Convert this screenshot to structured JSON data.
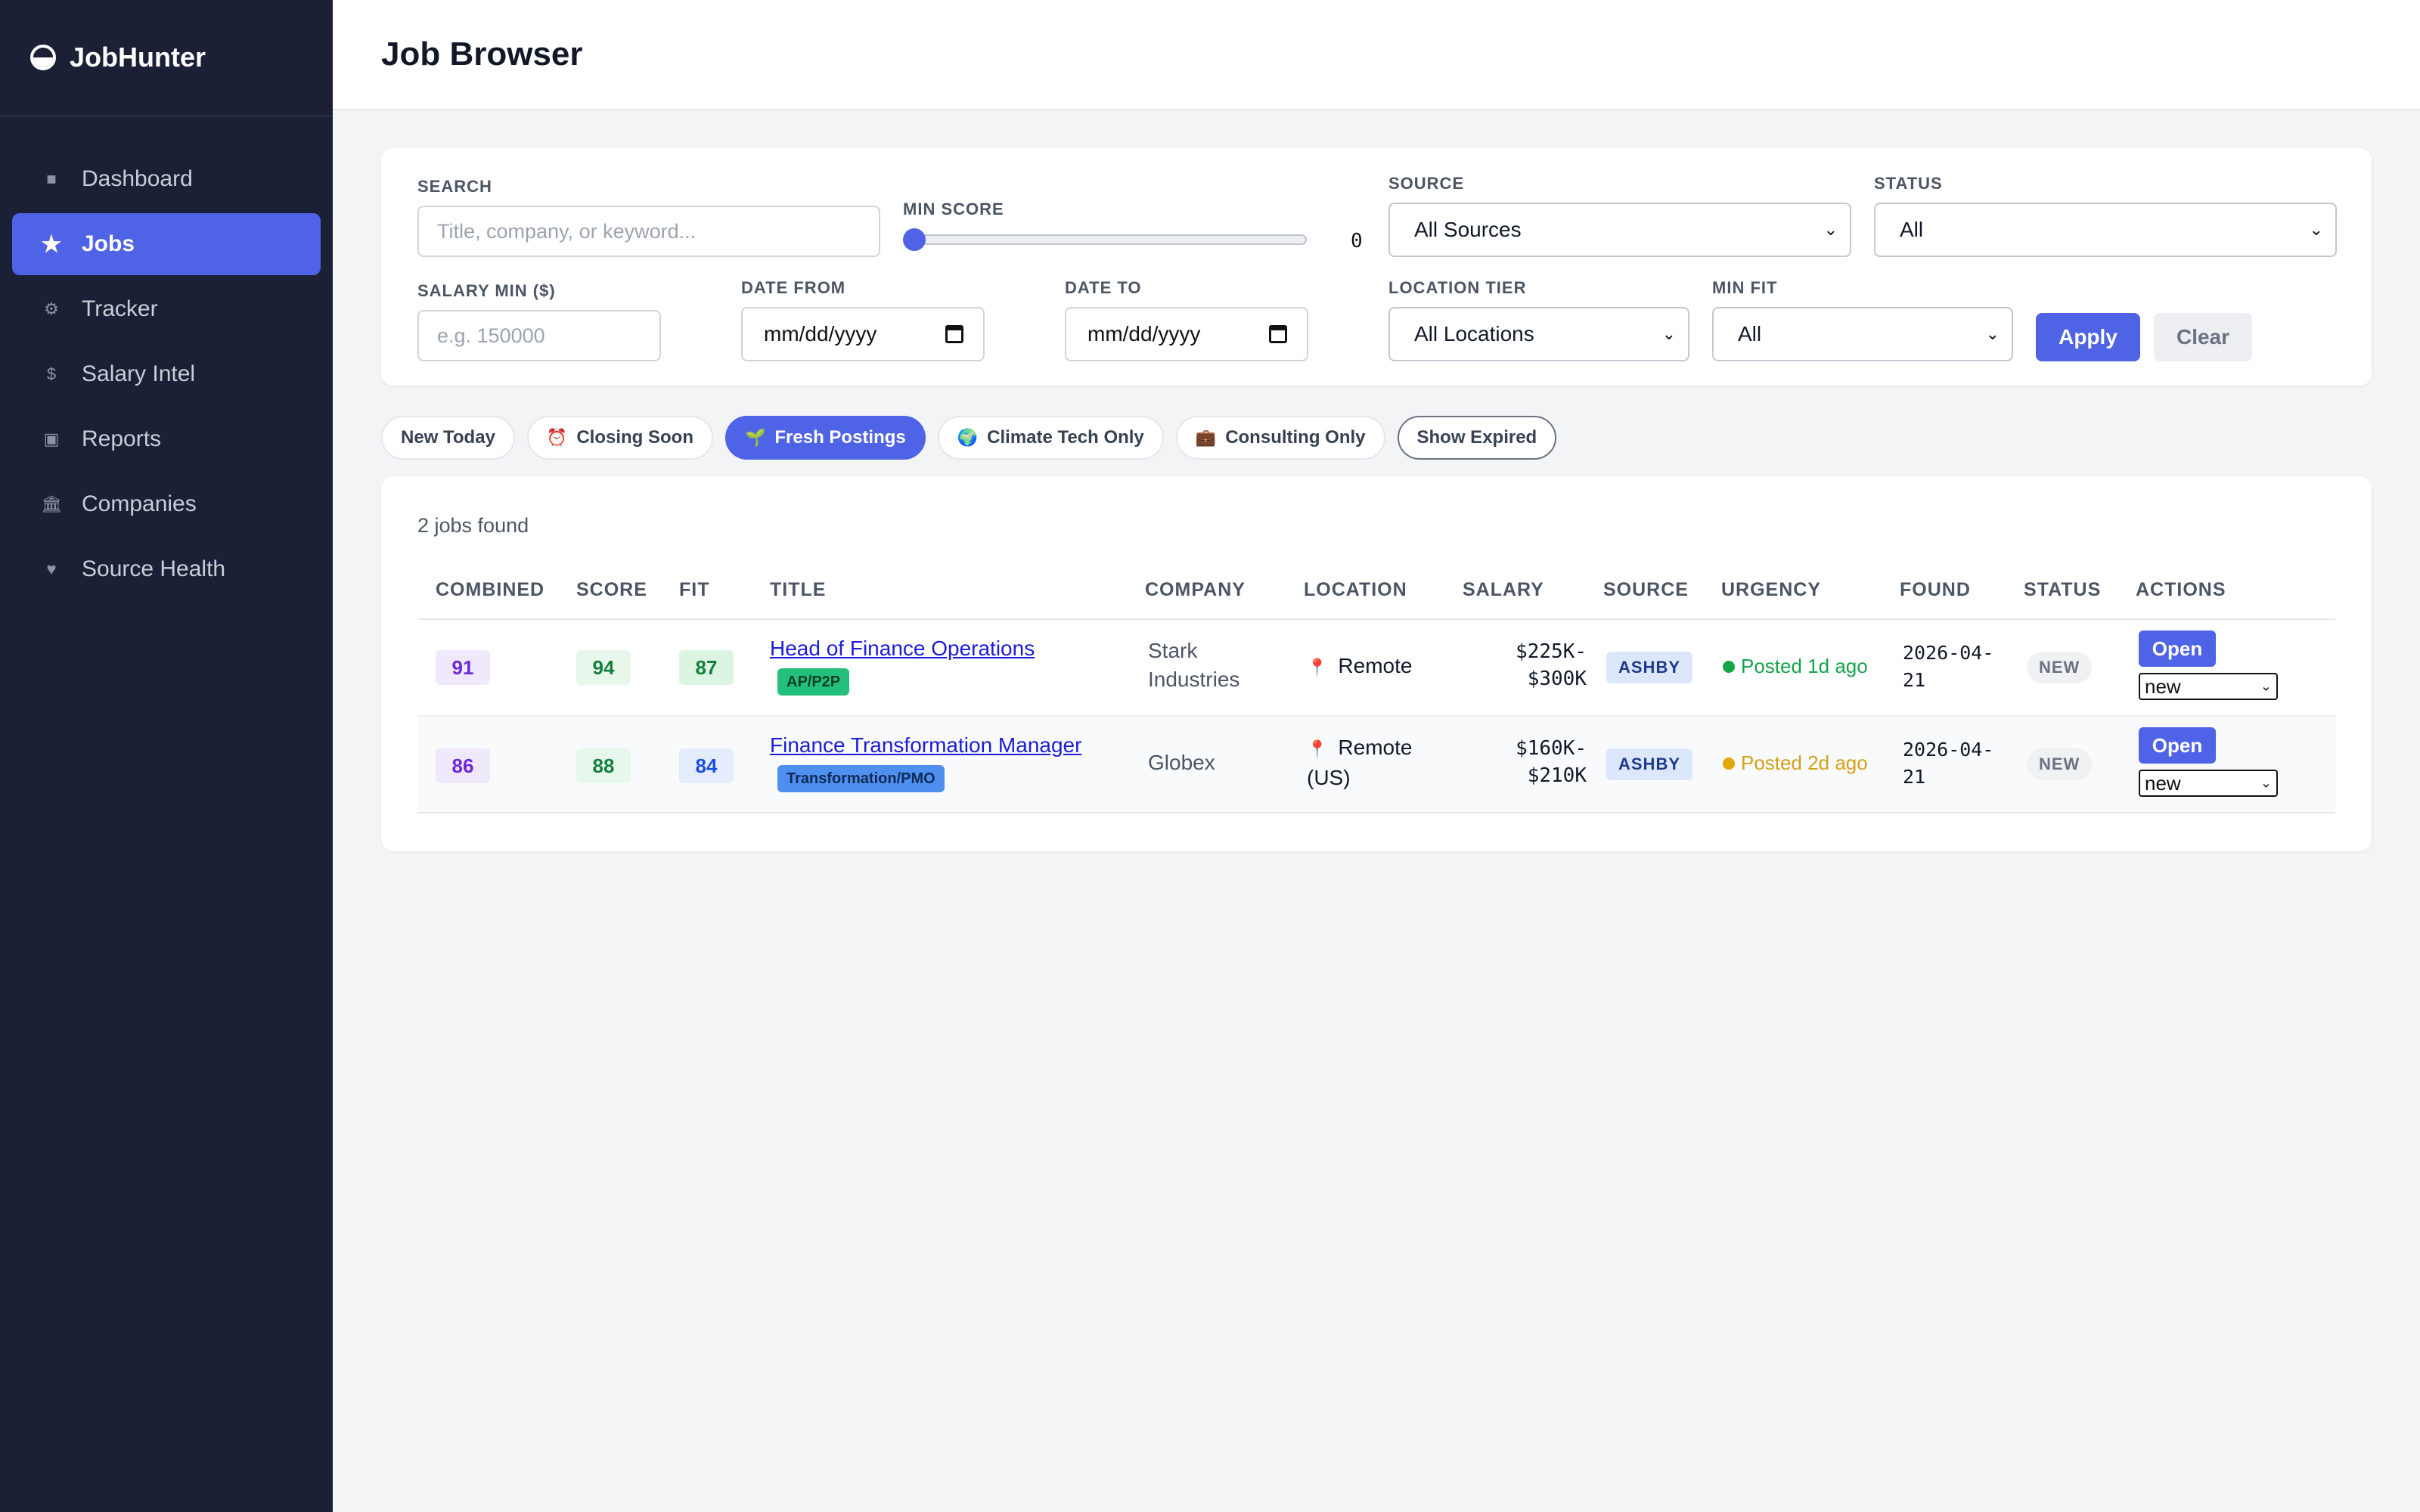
{
  "app": {
    "name": "JobHunter"
  },
  "sidebar": {
    "items": [
      {
        "label": "Dashboard",
        "icon": "■"
      },
      {
        "label": "Jobs",
        "icon": "★"
      },
      {
        "label": "Tracker",
        "icon": "⚙"
      },
      {
        "label": "Salary Intel",
        "icon": "$"
      },
      {
        "label": "Reports",
        "icon": "▣"
      },
      {
        "label": "Companies",
        "icon": "🏛"
      },
      {
        "label": "Source Health",
        "icon": "♥"
      }
    ]
  },
  "header": {
    "title": "Job Browser"
  },
  "filters": {
    "search": {
      "label": "SEARCH",
      "placeholder": "Title, company, or keyword..."
    },
    "min_score": {
      "label": "MIN SCORE",
      "value": "0"
    },
    "source": {
      "label": "SOURCE",
      "value": "All Sources"
    },
    "status": {
      "label": "STATUS",
      "value": "All"
    },
    "salary_min": {
      "label": "SALARY MIN ($)",
      "placeholder": "e.g. 150000"
    },
    "date_from": {
      "label": "DATE FROM",
      "value": "mm/dd/yyyy"
    },
    "date_to": {
      "label": "DATE TO",
      "value": "mm/dd/yyyy"
    },
    "location_tier": {
      "label": "LOCATION TIER",
      "value": "All Locations"
    },
    "min_fit": {
      "label": "MIN FIT",
      "value": "All"
    },
    "apply_label": "Apply",
    "clear_label": "Clear"
  },
  "chips": [
    {
      "label": "New Today",
      "icon": ""
    },
    {
      "label": "Closing Soon",
      "icon": "⏰"
    },
    {
      "label": "Fresh Postings",
      "icon": "🌱"
    },
    {
      "label": "Climate Tech Only",
      "icon": "🌍"
    },
    {
      "label": "Consulting Only",
      "icon": "💼"
    },
    {
      "label": "Show Expired",
      "icon": ""
    }
  ],
  "results": {
    "count_text": "2 jobs found",
    "columns": [
      "COMBINED",
      "SCORE",
      "FIT",
      "TITLE",
      "COMPANY",
      "LOCATION",
      "SALARY",
      "SOURCE",
      "URGENCY",
      "FOUND",
      "STATUS",
      "ACTIONS"
    ],
    "rows": [
      {
        "combined": "91",
        "score": "94",
        "fit": "87",
        "title": "Head of Finance Operations",
        "tag": "AP/P2P",
        "company_line1": "Stark",
        "company_line2": "Industries",
        "location_line1": "Remote",
        "location_line2": "",
        "salary_line1": "$225K-",
        "salary_line2": "$300K",
        "source": "ASHBY",
        "urgency": "Posted 1d ago",
        "found_line1": "2026-04-",
        "found_line2": "21",
        "status": "NEW",
        "open_label": "Open",
        "select_value": "new"
      },
      {
        "combined": "86",
        "score": "88",
        "fit": "84",
        "title": "Finance Transformation Manager",
        "tag": "Transformation/PMO",
        "company_line1": "Globex",
        "company_line2": "",
        "location_line1": "Remote",
        "location_line2": "(US)",
        "salary_line1": "$160K-",
        "salary_line2": "$210K",
        "source": "ASHBY",
        "urgency": "Posted 2d ago",
        "found_line1": "2026-04-",
        "found_line2": "21",
        "status": "NEW",
        "open_label": "Open",
        "select_value": "new"
      }
    ]
  },
  "colors": {
    "accent": "#4f63e7",
    "sidebar_bg": "#1c2036",
    "urgency_green": "#16a34a",
    "urgency_amber": "#d4a017"
  }
}
